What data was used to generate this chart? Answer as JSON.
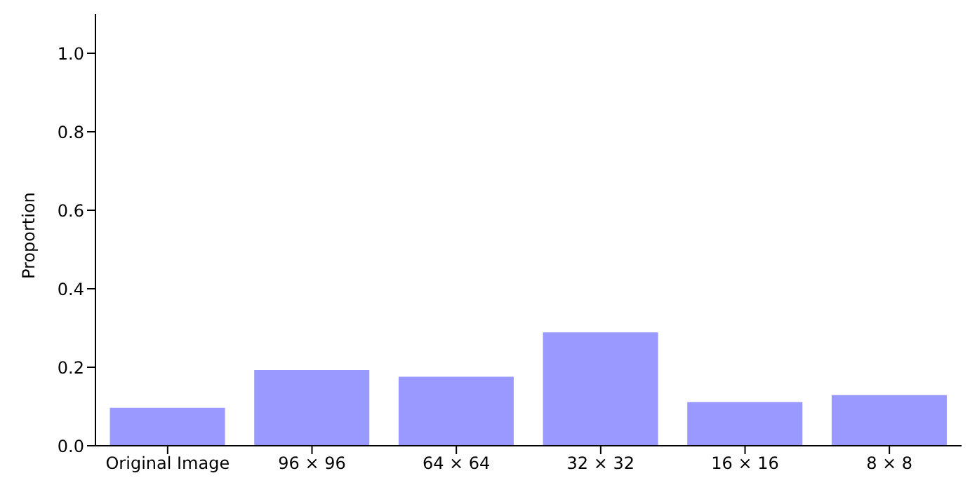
{
  "chart_data": {
    "type": "bar",
    "ylabel": "Proportion",
    "categories": [
      "Original Image",
      "96 × 96",
      "64 × 64",
      "32 × 32",
      "16 × 16",
      "8 × 8"
    ],
    "values": [
      0.097,
      0.193,
      0.176,
      0.289,
      0.111,
      0.129
    ],
    "color": "#9999ff",
    "ylim": [
      0,
      1.1
    ],
    "yticks": [
      {
        "value": 0,
        "label": "0.0"
      },
      {
        "value": 0.2,
        "label": "0.2"
      },
      {
        "value": 0.4,
        "label": "0.4"
      },
      {
        "value": 0.6,
        "label": "0.6"
      },
      {
        "value": 0.8,
        "label": "0.8"
      },
      {
        "value": 1,
        "label": "1.0"
      }
    ],
    "grid": false,
    "legend": false
  }
}
